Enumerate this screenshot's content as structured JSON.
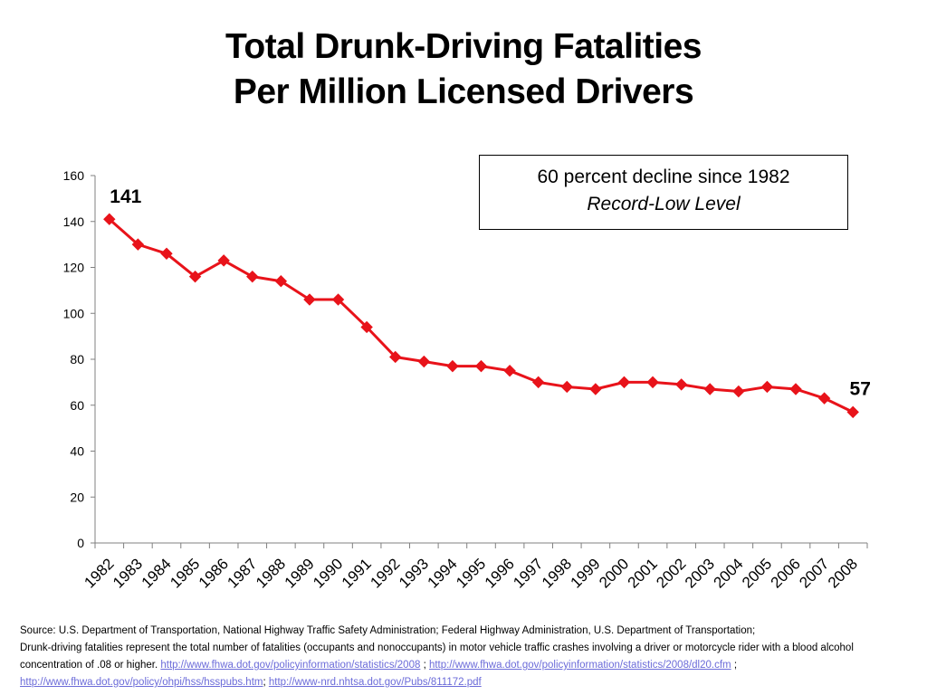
{
  "chart_data": {
    "type": "line",
    "title": "Total Drunk-Driving Fatalities",
    "subtitle": "Per Million Licensed Drivers",
    "xlabel": "",
    "ylabel": "",
    "ylim": [
      0,
      160
    ],
    "yticks": [
      0,
      20,
      40,
      60,
      80,
      100,
      120,
      140,
      160
    ],
    "grid": false,
    "categories": [
      "1982",
      "1983",
      "1984",
      "1985",
      "1986",
      "1987",
      "1988",
      "1989",
      "1990",
      "1991",
      "1992",
      "1993",
      "1994",
      "1995",
      "1996",
      "1997",
      "1998",
      "1999",
      "2000",
      "2001",
      "2002",
      "2003",
      "2004",
      "2005",
      "2006",
      "2007",
      "2008"
    ],
    "series": [
      {
        "values": [
          141,
          130,
          126,
          116,
          123,
          116,
          114,
          106,
          106,
          94,
          81,
          79,
          77,
          77,
          75,
          70,
          68,
          67,
          70,
          70,
          69,
          67,
          66,
          68,
          67,
          63,
          57
        ],
        "color": "#e8131a",
        "marker": "diamond"
      }
    ],
    "annotations": [
      {
        "label": "141",
        "category": "1982"
      },
      {
        "label": "57",
        "category": "2008"
      }
    ],
    "callout": {
      "line1": "60 percent decline since 1982",
      "line2": "Record-Low Level"
    }
  },
  "source": {
    "line1": "Source: U.S. Department of Transportation, National Highway Traffic Safety Administration;  Federal Highway Administration, U.S. Department of Transportation;",
    "line2_text": "Drunk-driving fatalities represent the total number of fatalities (occupants and nonoccupants) in motor vehicle traffic crashes involving a driver or motorcycle rider with a blood alcohol concentration of .08 or higher. ",
    "link1": "http://www.fhwa.dot.gov/policyinformation/statistics/2008",
    "sep1": "  ; ",
    "link2": "http://www.fhwa.dot.gov/policyinformation/statistics/2008/dl20.cfm",
    "sep2": " ;",
    "link3": "http://www.fhwa.dot.gov/policy/ohpi/hss/hsspubs.htm",
    "sep3": "; ",
    "link4": "http://www-nrd.nhtsa.dot.gov/Pubs/811172.pdf"
  }
}
